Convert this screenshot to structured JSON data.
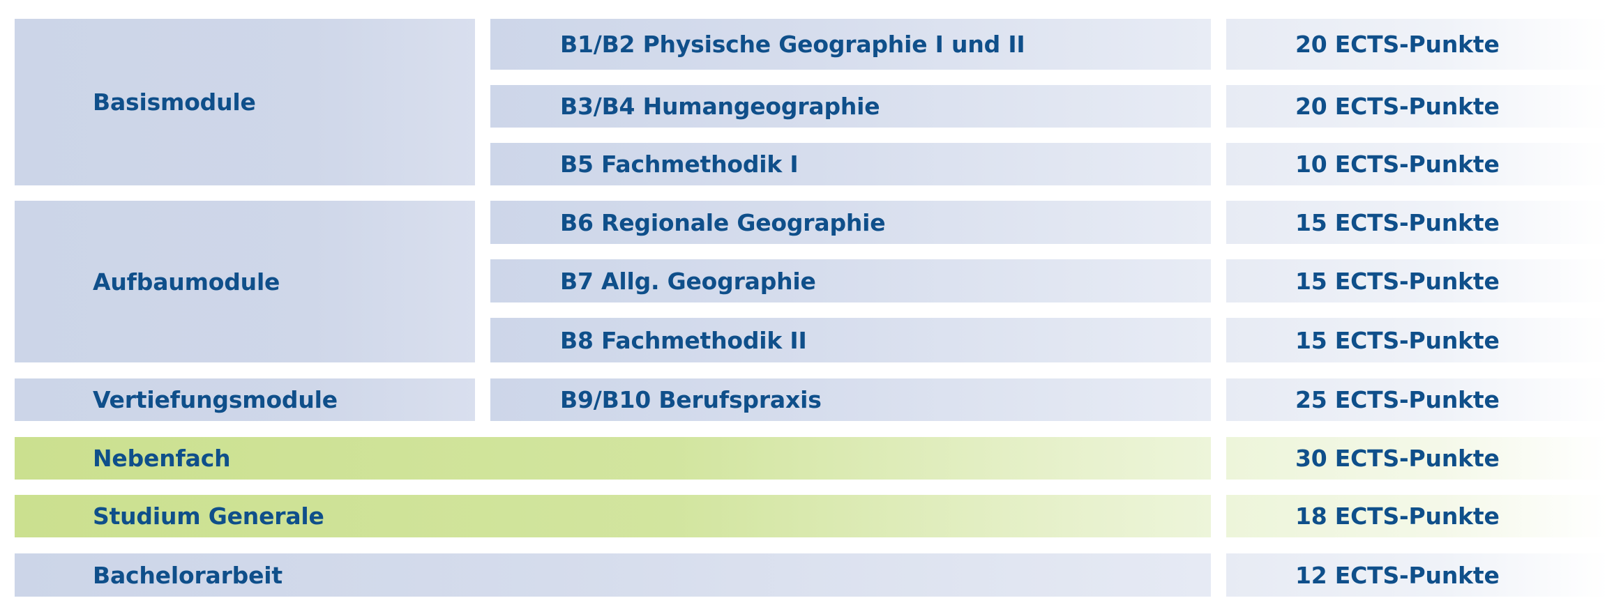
{
  "categories": {
    "basis": "Basismodule",
    "aufbau": "Aufbaumodule",
    "vertiefung": "Vertiefungsmodule",
    "nebenfach": "Nebenfach",
    "studium_generale": "Studium Generale",
    "bachelorarbeit": "Bachelorarbeit"
  },
  "modules": [
    "B1/B2 Physische Geographie I und II",
    "B3/B4 Humangeographie",
    "B5 Fachmethodik I",
    "B6 Regionale Geographie",
    "B7 Allg. Geographie",
    "B8 Fachmethodik II",
    "B9/B10 Berufspraxis"
  ],
  "ects": [
    "20 ECTS-Punkte",
    "20 ECTS-Punkte",
    "10 ECTS-Punkte",
    "15 ECTS-Punkte",
    "15 ECTS-Punkte",
    "15 ECTS-Punkte",
    "25 ECTS-Punkte",
    "30 ECTS-Punkte",
    "18 ECTS-Punkte",
    "12 ECTS-Punkte"
  ],
  "colors": {
    "text": "#0f4f8a",
    "blue_fill": "#ccd5e8",
    "green_fill": "#cbe08f"
  }
}
